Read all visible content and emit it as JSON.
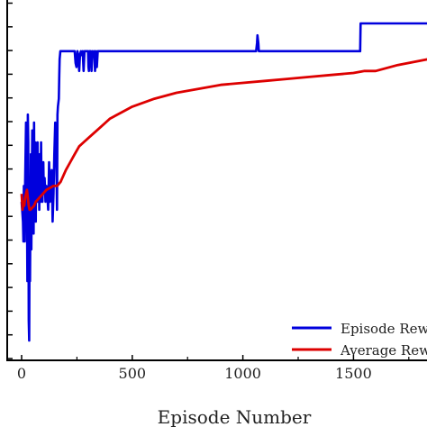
{
  "chart_data": {
    "type": "line",
    "title": "",
    "xlabel": "Episode Number",
    "ylabel": "",
    "xlim": [
      -60,
      1840
    ],
    "x_ticks": [
      "0",
      "500",
      "1000",
      "1500"
    ],
    "grid": false,
    "legend_position": "bottom-right",
    "series": [
      {
        "name": "Episode Rew",
        "color": "#0000dd",
        "x": [
          0,
          6,
          8,
          10,
          14,
          16,
          20,
          22,
          24,
          26,
          28,
          30,
          32,
          34,
          36,
          38,
          40,
          42,
          44,
          46,
          48,
          50,
          52,
          54,
          56,
          58,
          60,
          62,
          64,
          66,
          68,
          70,
          72,
          74,
          76,
          78,
          80,
          82,
          84,
          86,
          88,
          90,
          92,
          94,
          96,
          98,
          100,
          104,
          108,
          112,
          116,
          120,
          124,
          128,
          132,
          136,
          140,
          144,
          148,
          152,
          156,
          160,
          162,
          164,
          168,
          170,
          172,
          175,
          180,
          240,
          244,
          248,
          252,
          256,
          260,
          264,
          268,
          272,
          276,
          280,
          284,
          300,
          302,
          304,
          306,
          312,
          316,
          320,
          324,
          328,
          332,
          336,
          340,
          344,
          348,
          352,
          356,
          360,
          364,
          368,
          372,
          380,
          500,
          800,
          1000,
          1060,
          1064,
          1066,
          1070,
          1072,
          1076,
          1080,
          1100,
          1300,
          1530,
          1532,
          1540,
          1700,
          1840
        ],
        "y": [
          0.4,
          0.35,
          0.3,
          0.44,
          0.3,
          0.45,
          0.6,
          0.55,
          0.4,
          0.2,
          0.62,
          0.55,
          0.1,
          0.05,
          0.3,
          0.2,
          0.38,
          0.52,
          0.28,
          0.45,
          0.58,
          0.42,
          0.56,
          0.32,
          0.6,
          0.45,
          0.4,
          0.55,
          0.35,
          0.52,
          0.48,
          0.4,
          0.55,
          0.42,
          0.5,
          0.45,
          0.38,
          0.52,
          0.44,
          0.4,
          0.55,
          0.42,
          0.48,
          0.4,
          0.45,
          0.5,
          0.42,
          0.46,
          0.4,
          0.44,
          0.42,
          0.38,
          0.5,
          0.4,
          0.44,
          0.48,
          0.35,
          0.42,
          0.52,
          0.6,
          0.54,
          0.38,
          0.62,
          0.64,
          0.66,
          0.72,
          0.76,
          0.78,
          0.78,
          0.78,
          0.75,
          0.74,
          0.78,
          0.77,
          0.73,
          0.77,
          0.78,
          0.77,
          0.78,
          0.73,
          0.78,
          0.78,
          0.74,
          0.73,
          0.78,
          0.78,
          0.73,
          0.78,
          0.77,
          0.78,
          0.73,
          0.78,
          0.74,
          0.78,
          0.78,
          0.78,
          0.78,
          0.78,
          0.78,
          0.78,
          0.78,
          0.78,
          0.78,
          0.78,
          0.78,
          0.78,
          0.8,
          0.82,
          0.8,
          0.78,
          0.78,
          0.78,
          0.78,
          0.78,
          0.78,
          0.85,
          0.85,
          0.85,
          0.85
        ]
      },
      {
        "name": "Average Rew",
        "color": "#dd0000",
        "x": [
          0,
          4,
          8,
          12,
          16,
          20,
          24,
          28,
          32,
          36,
          40,
          48,
          56,
          64,
          72,
          80,
          96,
          112,
          128,
          144,
          160,
          168,
          176,
          184,
          200,
          220,
          240,
          260,
          280,
          300,
          320,
          340,
          360,
          380,
          400,
          450,
          500,
          600,
          700,
          800,
          900,
          1000,
          1100,
          1200,
          1300,
          1400,
          1500,
          1550,
          1600,
          1700,
          1840
        ],
        "y": [
          0.42,
          0.38,
          0.4,
          0.39,
          0.41,
          0.42,
          0.43,
          0.41,
          0.39,
          0.38,
          0.38,
          0.385,
          0.39,
          0.4,
          0.405,
          0.41,
          0.42,
          0.43,
          0.435,
          0.44,
          0.44,
          0.445,
          0.45,
          0.46,
          0.48,
          0.5,
          0.52,
          0.54,
          0.55,
          0.56,
          0.57,
          0.58,
          0.59,
          0.6,
          0.61,
          0.625,
          0.64,
          0.66,
          0.675,
          0.685,
          0.695,
          0.7,
          0.705,
          0.71,
          0.715,
          0.72,
          0.725,
          0.73,
          0.73,
          0.745,
          0.76
        ]
      }
    ]
  }
}
